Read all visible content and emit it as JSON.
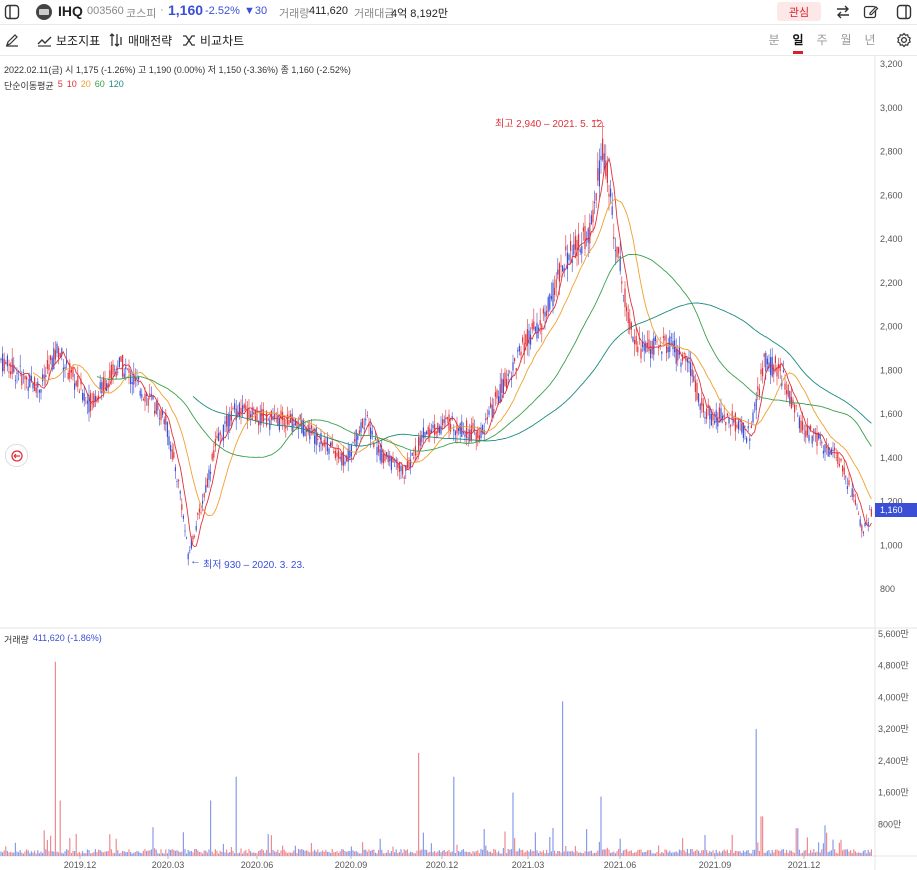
{
  "header": {
    "stock_name": "IHQ",
    "stock_code": "003560",
    "market": "코스피",
    "price": "1,160",
    "change_pct": "-2.52%",
    "change_abs": "▼30",
    "volume_label": "거래량",
    "volume_value": "411,620",
    "amount_label": "거래대금",
    "amount_value": "4억 8,192만",
    "watch_label": "관심"
  },
  "toolbar": {
    "indicator_label": "보조지표",
    "strategy_label": "매매전략",
    "compare_label": "비교차트",
    "periods": [
      "분",
      "일",
      "주",
      "월",
      "년"
    ],
    "active_period": "일"
  },
  "info": {
    "ohlc_line": "2022.02.11(금)  시 1,175 (-1.26%)  고 1,190 (0.00%)  저 1,150 (-3.36%)  종 1,160 (-2.52%)",
    "ma_title": "단순이동평균",
    "ma_periods": [
      "5",
      "10",
      "20",
      "60",
      "120"
    ],
    "ma_colors": [
      "#e0323a",
      "#e0323a",
      "#f0a030",
      "#3aa04a",
      "#1a8a80"
    ]
  },
  "price_axis": {
    "ticks": [
      "3,200",
      "3,000",
      "2,800",
      "2,600",
      "2,400",
      "2,200",
      "2,000",
      "1,800",
      "1,600",
      "1,400",
      "1,200",
      "1,000",
      "800"
    ],
    "current_badge": "1,160"
  },
  "annotations": {
    "high": "최고 2,940 – 2021. 5. 12.",
    "low": "최저 930 – 2020. 3. 23."
  },
  "volume": {
    "label": "거래량",
    "value": "411,620 (-1.86%)",
    "axis_ticks": [
      "5,600만",
      "4,800만",
      "4,000만",
      "3,200만",
      "2,400만",
      "1,600만",
      "800만"
    ]
  },
  "x_axis": {
    "labels": [
      "2019.12",
      "2020.03",
      "2020.06",
      "2020.09",
      "2020.12",
      "2021.03",
      "2021.06",
      "2021.09",
      "2021.12"
    ]
  },
  "colors": {
    "up": "#e0323a",
    "down": "#3a4fd6",
    "accent_red": "#d9202a"
  }
}
